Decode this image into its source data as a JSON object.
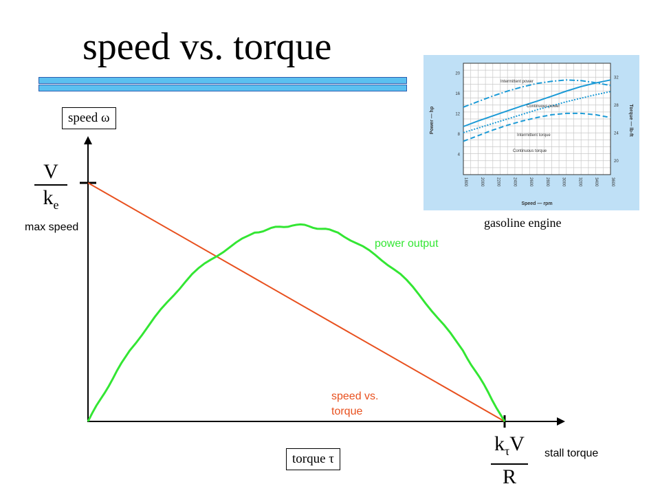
{
  "title": "speed vs. torque",
  "speed_box": {
    "text": "speed",
    "symbol": "ω"
  },
  "torque_box": {
    "text": "torque",
    "symbol": "τ"
  },
  "max_speed_frac": {
    "num": "V",
    "den_base": "k",
    "den_sub": "e"
  },
  "max_speed_label": "max speed",
  "stall_frac": {
    "num_base": "k",
    "num_sub": "τ",
    "num_tail": "V",
    "den": "R"
  },
  "stall_label": "stall torque",
  "power_label": "power output",
  "speed_torque_label": [
    "speed vs.",
    "torque"
  ],
  "inset_caption": "gasoline engine",
  "colors": {
    "power": "#33e633",
    "speed_line": "#e8501e",
    "accent_bar": "#5bc0f0",
    "inset_bg": "#bfe0f6",
    "inset_line": "#1b9ad6"
  },
  "chart_data": {
    "type": "line",
    "x_axis": "torque τ",
    "y_axis": "speed ω",
    "series": [
      {
        "name": "speed vs. torque",
        "x": [
          0,
          1
        ],
        "y": [
          1,
          0
        ]
      },
      {
        "name": "power output",
        "x": [
          0,
          0.1,
          0.25,
          0.4,
          0.5,
          0.6,
          0.75,
          0.9,
          1
        ],
        "y": [
          0,
          0.36,
          0.75,
          0.96,
          1.0,
          0.96,
          0.75,
          0.36,
          0
        ]
      }
    ]
  },
  "inset_chart": {
    "type": "line",
    "xlabel": "Speed — rpm",
    "ylabel_left": "Power — hp",
    "ylabel_right": "Torque — lb-ft",
    "x_ticks": [
      "1800",
      "2000",
      "2200",
      "2400",
      "2600",
      "2800",
      "3000",
      "3200",
      "3400",
      "3600"
    ],
    "y_left_ticks": [
      "20",
      "16",
      "12",
      "8",
      "4"
    ],
    "y_right_ticks": [
      "32",
      "28",
      "24",
      "20"
    ],
    "series": [
      {
        "name": "Intermittent power",
        "y": [
          9.5,
          10.6,
          11.6,
          12.6,
          13.6,
          14.5,
          15.5,
          16.5,
          17.4,
          18.1,
          18.7
        ]
      },
      {
        "name": "Continuous power",
        "y": [
          8.3,
          9.2,
          10.1,
          11.0,
          11.9,
          12.8,
          13.6,
          14.4,
          15.1,
          15.8,
          16.4
        ]
      },
      {
        "name": "Intermittent torque",
        "y": [
          27.7,
          28.5,
          29.3,
          30.0,
          30.6,
          31.1,
          31.4,
          31.6,
          31.5,
          31.2,
          30.8
        ]
      },
      {
        "name": "Continuous torque",
        "y": [
          22.8,
          23.6,
          24.4,
          25.1,
          25.7,
          26.2,
          26.6,
          26.8,
          26.8,
          26.6,
          26.2
        ]
      }
    ]
  }
}
